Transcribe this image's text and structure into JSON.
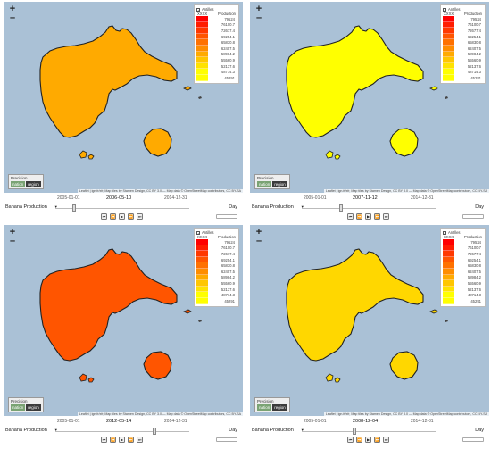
{
  "legend": {
    "layer": "Antilles",
    "title": "Production",
    "mask": "XXXX",
    "entries": [
      {
        "label": "79524",
        "color": "#ff0000"
      },
      {
        "label": "76100.7",
        "color": "#ff1c00"
      },
      {
        "label": "72677.4",
        "color": "#ff3800"
      },
      {
        "label": "69254.1",
        "color": "#ff5500"
      },
      {
        "label": "65830.8",
        "color": "#ff7100"
      },
      {
        "label": "62407.5",
        "color": "#ff8d00"
      },
      {
        "label": "58984.2",
        "color": "#ffaa00"
      },
      {
        "label": "55560.9",
        "color": "#ffc600"
      },
      {
        "label": "52137.6",
        "color": "#ffe200"
      },
      {
        "label": "48714.3",
        "color": "#ffff00"
      },
      {
        "label": "45291",
        "color": "#ffff00"
      }
    ]
  },
  "zoom": {
    "in": "+",
    "out": "–"
  },
  "precision": {
    "title": "Precision",
    "nation": "nation",
    "region": "region"
  },
  "attribution": "Leaflet | ign.fr/xfr, Map tiles by Stamen Design, CC BY 3.0 — Map data © OpenStreetMap contributors, CC BY-SA",
  "product": "Banana Production",
  "unit": "Day",
  "controls": [
    "⏮",
    "⏪",
    "▶",
    "⏩",
    "⏭"
  ],
  "panels": [
    {
      "start": "2005-01-01",
      "current": "2006-05-10",
      "end": "2014-12-31",
      "region_color": "#ffaa00",
      "progress": 0.14
    },
    {
      "start": "2005-01-01",
      "current": "2007-11-12",
      "end": "2014-12-31",
      "region_color": "#ffff00",
      "progress": 0.29
    },
    {
      "start": "2005-01-01",
      "current": "2012-05-14",
      "end": "2014-12-31",
      "region_color": "#ff5500",
      "progress": 0.74
    },
    {
      "start": "2005-01-01",
      "current": "2008-12-04",
      "end": "2014-12-31",
      "region_color": "#ffd700",
      "progress": 0.39
    }
  ]
}
